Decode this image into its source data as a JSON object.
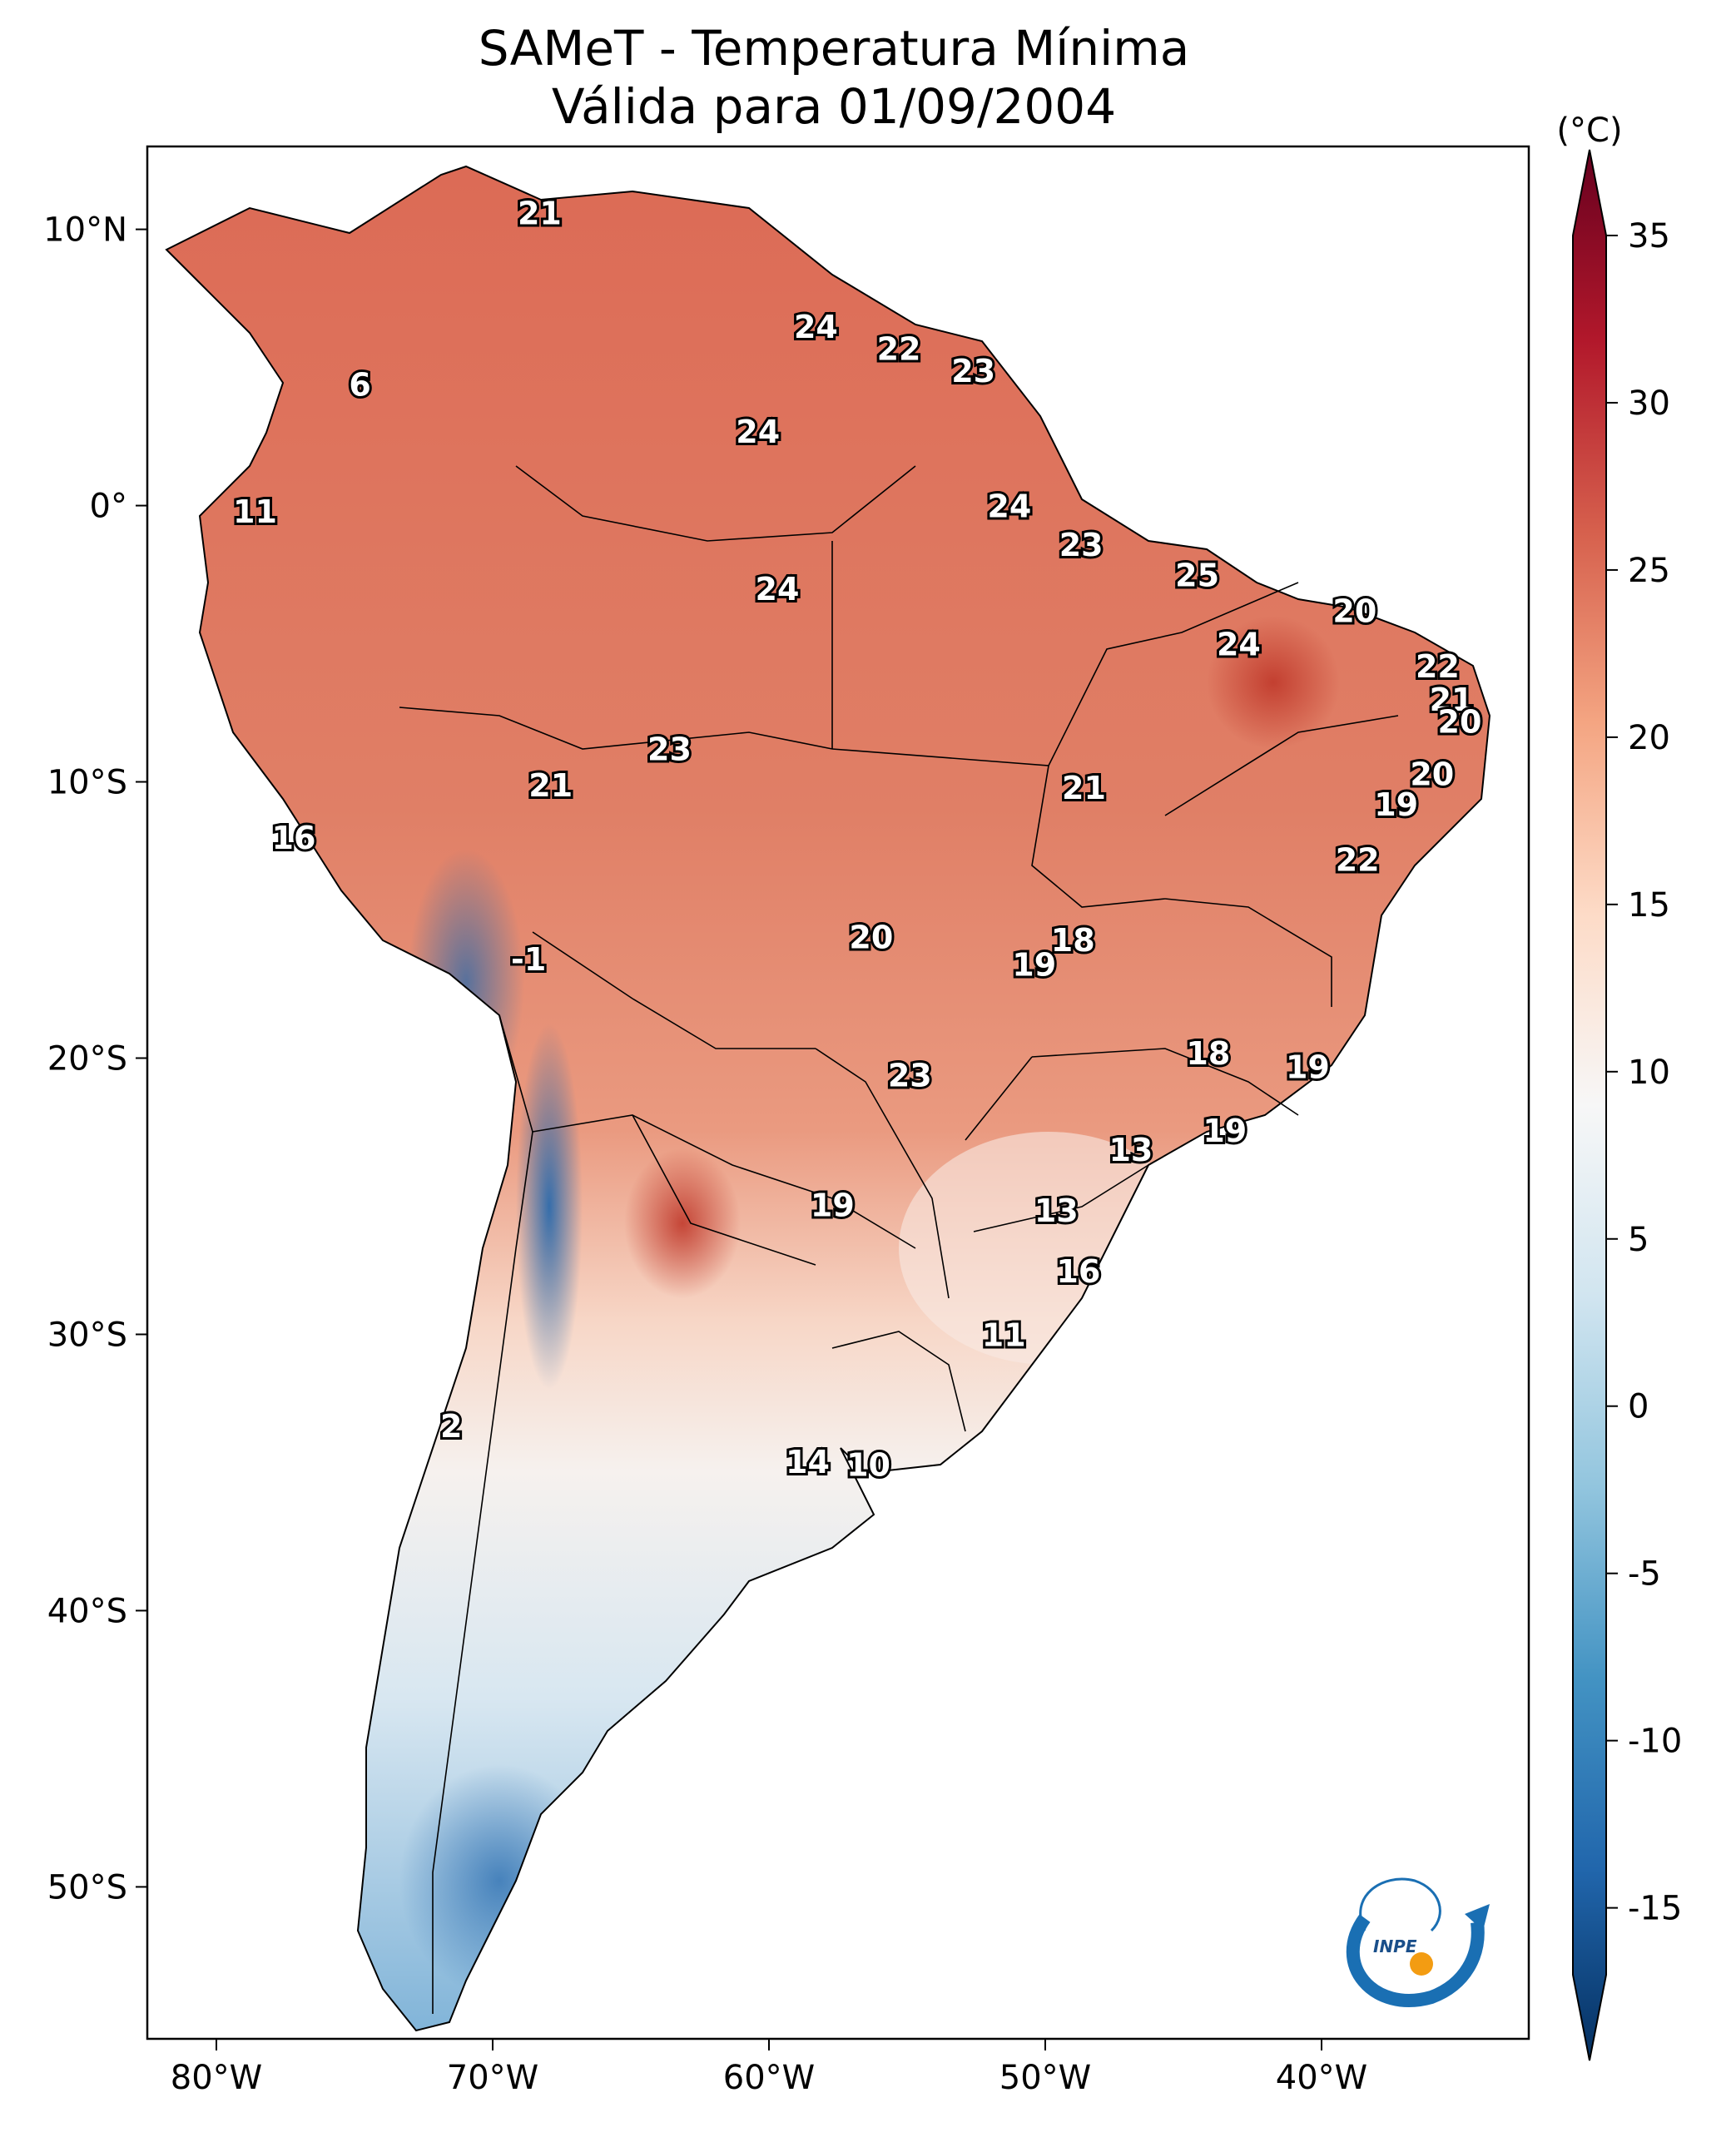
{
  "title": {
    "line1": "SAMeT - Temperatura Mínima",
    "line2": "Válida para 01/09/2004"
  },
  "map": {
    "lon_ticks": [
      "80°W",
      "70°W",
      "60°W",
      "50°W",
      "40°W"
    ],
    "lat_ticks": [
      "10°N",
      "0°",
      "10°S",
      "20°S",
      "30°S",
      "40°S",
      "50°S"
    ],
    "extent": {
      "lon": [
        -82.5,
        -32.5
      ],
      "lat": [
        -55.5,
        13
      ]
    },
    "ocean_color": "#ffffff",
    "border_color": "#000000",
    "labels": [
      {
        "text": "21",
        "lon": -68.3,
        "lat": 10.6
      },
      {
        "text": "6",
        "lon": -74.8,
        "lat": 4.4
      },
      {
        "text": "24",
        "lon": -58.3,
        "lat": 6.5
      },
      {
        "text": "22",
        "lon": -55.3,
        "lat": 5.7
      },
      {
        "text": "23",
        "lon": -52.6,
        "lat": 4.9
      },
      {
        "text": "24",
        "lon": -60.4,
        "lat": 2.7
      },
      {
        "text": "11",
        "lon": -78.6,
        "lat": -0.2
      },
      {
        "text": "24",
        "lon": -51.3,
        "lat": 0.0
      },
      {
        "text": "23",
        "lon": -48.7,
        "lat": -1.4
      },
      {
        "text": "24",
        "lon": -59.7,
        "lat": -3.0
      },
      {
        "text": "25",
        "lon": -44.5,
        "lat": -2.5
      },
      {
        "text": "20",
        "lon": -38.8,
        "lat": -3.8
      },
      {
        "text": "24",
        "lon": -43.0,
        "lat": -5.0
      },
      {
        "text": "22",
        "lon": -35.8,
        "lat": -5.8
      },
      {
        "text": "21",
        "lon": -35.3,
        "lat": -7.0
      },
      {
        "text": "20",
        "lon": -35.0,
        "lat": -7.8
      },
      {
        "text": "23",
        "lon": -63.6,
        "lat": -8.8
      },
      {
        "text": "21",
        "lon": -67.9,
        "lat": -10.1
      },
      {
        "text": "21",
        "lon": -48.6,
        "lat": -10.2
      },
      {
        "text": "20",
        "lon": -36.0,
        "lat": -9.7
      },
      {
        "text": "19",
        "lon": -37.3,
        "lat": -10.8
      },
      {
        "text": "16",
        "lon": -77.2,
        "lat": -12.0
      },
      {
        "text": "22",
        "lon": -38.7,
        "lat": -12.8
      },
      {
        "text": "20",
        "lon": -56.3,
        "lat": -15.6
      },
      {
        "text": "18",
        "lon": -49.0,
        "lat": -15.7
      },
      {
        "text": "19",
        "lon": -50.4,
        "lat": -16.6
      },
      {
        "text": "-1",
        "lon": -68.7,
        "lat": -16.4
      },
      {
        "text": "18",
        "lon": -44.1,
        "lat": -19.8
      },
      {
        "text": "19",
        "lon": -40.5,
        "lat": -20.3
      },
      {
        "text": "23",
        "lon": -54.9,
        "lat": -20.6
      },
      {
        "text": "19",
        "lon": -43.5,
        "lat": -22.6
      },
      {
        "text": "13",
        "lon": -46.9,
        "lat": -23.3
      },
      {
        "text": "19",
        "lon": -57.7,
        "lat": -25.3
      },
      {
        "text": "13",
        "lon": -49.6,
        "lat": -25.5
      },
      {
        "text": "16",
        "lon": -48.8,
        "lat": -27.7
      },
      {
        "text": "11",
        "lon": -51.5,
        "lat": -30.0
      },
      {
        "text": "2",
        "lon": -71.5,
        "lat": -33.3
      },
      {
        "text": "14",
        "lon": -58.6,
        "lat": -34.6
      },
      {
        "text": "10",
        "lon": -56.4,
        "lat": -34.7
      }
    ]
  },
  "colorbar": {
    "unit": "(°C)",
    "min": -17,
    "max": 35,
    "ticks": [
      "35",
      "30",
      "25",
      "20",
      "15",
      "10",
      "5",
      "0",
      "-5",
      "-10",
      "-15"
    ],
    "tick_values": [
      35,
      30,
      25,
      20,
      15,
      10,
      5,
      0,
      -5,
      -10,
      -15
    ],
    "colormap": "RdBu_r",
    "color_stops": [
      "#053061",
      "#2166ac",
      "#4393c3",
      "#92c5de",
      "#d1e5f0",
      "#f7f7f7",
      "#fddbc7",
      "#f4a582",
      "#d6604d",
      "#b2182b",
      "#67001f"
    ]
  },
  "logo": {
    "text": "INPE"
  }
}
